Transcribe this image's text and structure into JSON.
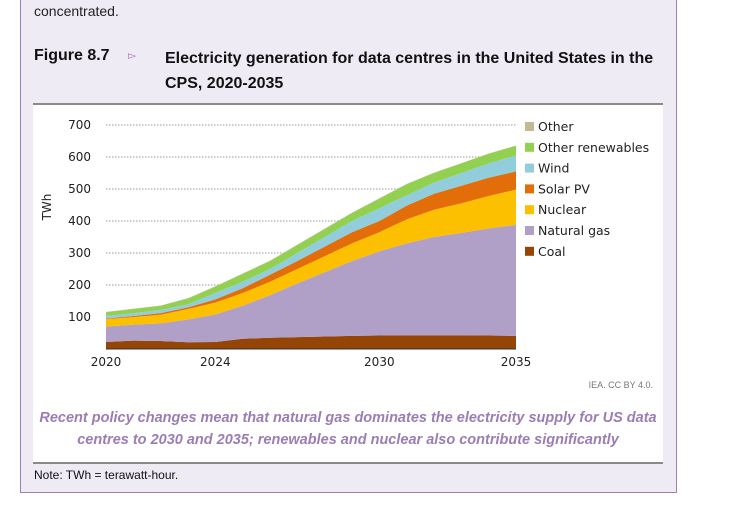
{
  "intro_text": "concentrated.",
  "figure": {
    "label": "Figure 8.7",
    "marker": "▻",
    "title": "Electricity generation for data centres in the United States in the CPS, 2020-2035",
    "credit": "IEA. CC BY 4.0.",
    "caption": "Recent policy changes mean that natural gas dominates the electricity supply for US data centres to 2030 and 2035; renewables and nuclear also contribute significantly",
    "note": "Note: TWh = terawatt-hour."
  },
  "chart_data": {
    "type": "area",
    "stacked": true,
    "title": "Electricity generation for data centres in the United States in the CPS, 2020-2035",
    "ylabel": "TWh",
    "xlabel": "",
    "ylim": [
      0,
      700
    ],
    "yticks": [
      100,
      200,
      300,
      400,
      500,
      600,
      700
    ],
    "xlim": [
      2020,
      2035
    ],
    "xticks": [
      2020,
      2024,
      2030,
      2035
    ],
    "grid": "horizontal dotted",
    "legend": "right",
    "x": [
      2020,
      2021,
      2022,
      2023,
      2024,
      2025,
      2026,
      2027,
      2028,
      2029,
      2030,
      2031,
      2032,
      2033,
      2034,
      2035
    ],
    "series": [
      {
        "name": "Coal",
        "color": "#954607",
        "values": [
          22,
          26,
          25,
          21,
          22,
          32,
          35,
          37,
          39,
          41,
          42,
          43,
          43,
          43,
          42,
          41
        ]
      },
      {
        "name": "Natural gas",
        "color": "#b09fc6",
        "values": [
          48,
          50,
          55,
          71,
          86,
          103,
          133,
          168,
          201,
          234,
          263,
          287,
          307,
          320,
          335,
          347
        ]
      },
      {
        "name": "Nuclear",
        "color": "#fdc000",
        "values": [
          23,
          24,
          27,
          33,
          37,
          40,
          42,
          45,
          50,
          55,
          60,
          75,
          85,
          92,
          101,
          110
        ]
      },
      {
        "name": "Solar PV",
        "color": "#e26d09",
        "values": [
          2,
          3,
          5,
          5,
          10,
          15,
          22,
          25,
          30,
          35,
          35,
          43,
          50,
          55,
          57,
          57
        ]
      },
      {
        "name": "Wind",
        "color": "#92cddc",
        "values": [
          8,
          9,
          10,
          10,
          20,
          20,
          18,
          25,
          30,
          35,
          40,
          32,
          35,
          40,
          45,
          50
        ]
      },
      {
        "name": "Other renewables",
        "color": "#92d050",
        "values": [
          12,
          13,
          13,
          18,
          20,
          25,
          25,
          25,
          25,
          25,
          30,
          35,
          30,
          30,
          30,
          30
        ]
      },
      {
        "name": "Other",
        "color": "#c4b996",
        "values": [
          1,
          1,
          1,
          1,
          1,
          1,
          1,
          1,
          1,
          1,
          1,
          1,
          1,
          1,
          1,
          1
        ]
      }
    ]
  }
}
